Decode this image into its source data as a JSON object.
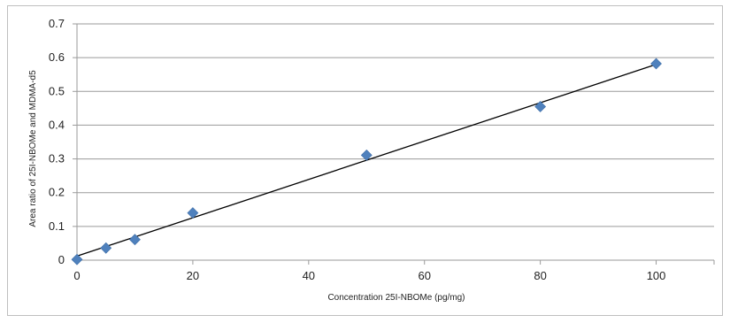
{
  "chart_data": {
    "type": "scatter",
    "title": "",
    "xlabel": "Concentration 25I-NBOMe (pg/mg)",
    "ylabel": "Area ratio of 25I-NBOMe and MDMA-d5",
    "xlim": [
      0,
      110
    ],
    "ylim": [
      0,
      0.7
    ],
    "x_ticks": [
      "0",
      "20",
      "40",
      "60",
      "80",
      "100"
    ],
    "y_ticks": [
      "0",
      "0.1",
      "0.2",
      "0.3",
      "0.4",
      "0.5",
      "0.6",
      "0.7"
    ],
    "grid": "horizontal",
    "legend": "none",
    "series": [
      {
        "x": [
          0,
          5,
          10,
          20,
          50,
          80,
          100
        ],
        "y": [
          0.002,
          0.036,
          0.061,
          0.14,
          0.311,
          0.455,
          0.582
        ],
        "marker": "diamond",
        "color": "#4f81bd"
      }
    ],
    "trendline": {
      "type": "linear",
      "x": [
        0,
        100
      ],
      "y": [
        0.012,
        0.58
      ],
      "color": "#000000"
    }
  }
}
